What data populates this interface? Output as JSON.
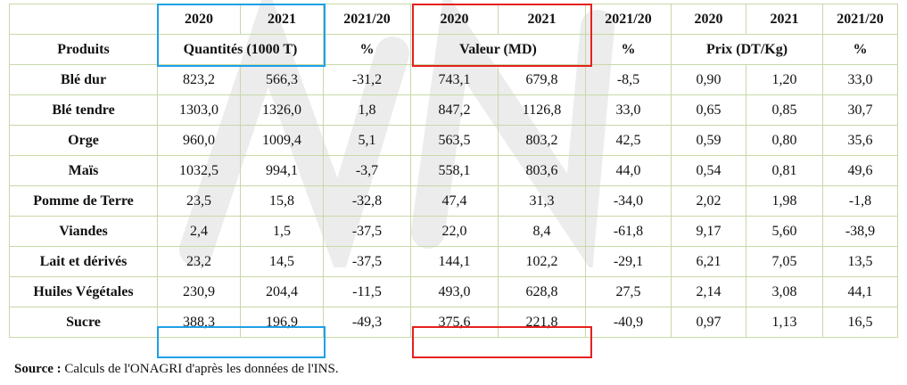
{
  "header_row1": [
    "",
    "2020",
    "2021",
    "2021/20",
    "2020",
    "2021",
    "2021/20",
    "2020",
    "2021",
    "2021/20"
  ],
  "header_row2": {
    "produits": "Produits",
    "quantites": "Quantités (1000 T)",
    "pct1": "%",
    "valeur": "Valeur (MD)",
    "pct2": "%",
    "prix": "Prix (DT/Kg)",
    "pct3": "%"
  },
  "rows": [
    {
      "produit": "Blé dur",
      "values": [
        "823,2",
        "566,3",
        "-31,2",
        "743,1",
        "679,8",
        "-8,5",
        "0,90",
        "1,20",
        "33,0"
      ]
    },
    {
      "produit": "Blé tendre",
      "values": [
        "1303,0",
        "1326,0",
        "1,8",
        "847,2",
        "1126,8",
        "33,0",
        "0,65",
        "0,85",
        "30,7"
      ]
    },
    {
      "produit": "Orge",
      "values": [
        "960,0",
        "1009,4",
        "5,1",
        "563,5",
        "803,2",
        "42,5",
        "0,59",
        "0,80",
        "35,6"
      ]
    },
    {
      "produit": "Maïs",
      "values": [
        "1032,5",
        "994,1",
        "-3,7",
        "558,1",
        "803,6",
        "44,0",
        "0,54",
        "0,81",
        "49,6"
      ]
    },
    {
      "produit": "Pomme de Terre",
      "values": [
        "23,5",
        "15,8",
        "-32,8",
        "47,4",
        "31,3",
        "-34,0",
        "2,02",
        "1,98",
        "-1,8"
      ]
    },
    {
      "produit": "Viandes",
      "values": [
        "2,4",
        "1,5",
        "-37,5",
        "22,0",
        "8,4",
        "-61,8",
        "9,17",
        "5,60",
        "-38,9"
      ]
    },
    {
      "produit": "Lait et dérivés",
      "values": [
        "23,2",
        "14,5",
        "-37,5",
        "144,1",
        "102,2",
        "-29,1",
        "6,21",
        "7,05",
        "13,5"
      ]
    },
    {
      "produit": "Huiles Végétales",
      "values": [
        "230,9",
        "204,4",
        "-11,5",
        "493,0",
        "628,8",
        "27,5",
        "2,14",
        "3,08",
        "44,1"
      ]
    },
    {
      "produit": "Sucre",
      "values": [
        "388,3",
        "196,9",
        "-49,3",
        "375,6",
        "221,8",
        "-40,9",
        "0,97",
        "1,13",
        "16,5"
      ]
    }
  ],
  "source": {
    "label": "Source :",
    "text": "Calculs de l'ONAGRI d'après les données de l'INS."
  },
  "colors": {
    "grid": "#c8d8a8",
    "highlight_blue": "#1ea0e6",
    "highlight_red": "#e62020",
    "watermark": "#e8e8e8"
  }
}
